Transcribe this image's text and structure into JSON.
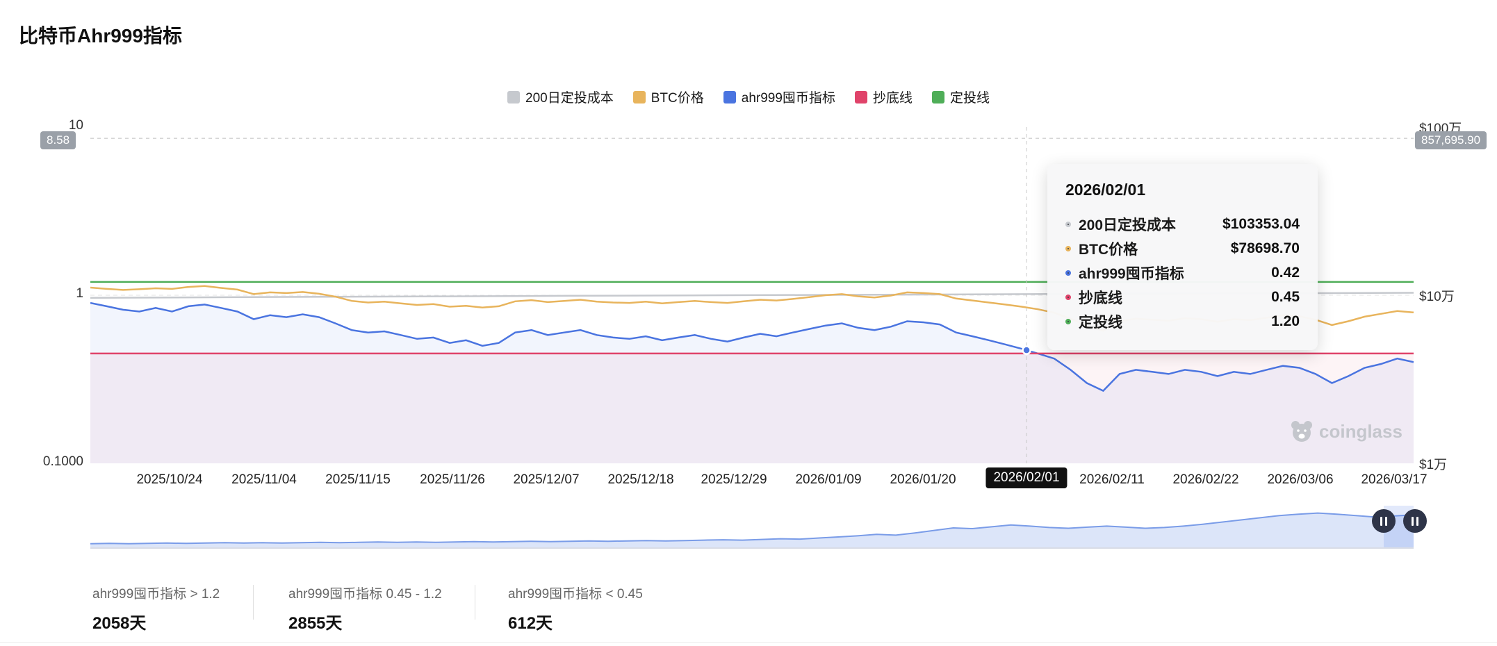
{
  "page": {
    "title": "比特币Ahr999指标"
  },
  "legend": [
    {
      "label": "200日定投成本",
      "color": "#c6c9ce"
    },
    {
      "label": "BTC价格",
      "color": "#e8b45c"
    },
    {
      "label": "ahr999囤币指标",
      "color": "#4a74e0"
    },
    {
      "label": "抄底线",
      "color": "#e0436a"
    },
    {
      "label": "定投线",
      "color": "#4fae58"
    }
  ],
  "axes": {
    "left_ticks": [
      "10",
      "1",
      "0.1000"
    ],
    "right_ticks": [
      "$100万",
      "$10万",
      "$1万"
    ],
    "left_badge": "8.58",
    "right_badge": "857,695.90",
    "x_ticks": [
      "2025/10/24",
      "2025/11/04",
      "2025/11/15",
      "2025/11/26",
      "2025/12/07",
      "2025/12/18",
      "2025/12/29",
      "2026/01/09",
      "2026/01/20",
      "2026/02/01",
      "2026/02/11",
      "2026/02/22",
      "2026/03/06",
      "2026/03/17"
    ]
  },
  "tooltip": {
    "title": "2026/02/01",
    "rows": [
      {
        "label": "200日定投成本",
        "value": "$103353.04",
        "color": "#c6c9ce"
      },
      {
        "label": "BTC价格",
        "value": "$78698.70",
        "color": "#e8b45c"
      },
      {
        "label": "ahr999囤币指标",
        "value": "0.42",
        "color": "#4a74e0"
      },
      {
        "label": "抄底线",
        "value": "0.45",
        "color": "#e0436a"
      },
      {
        "label": "定投线",
        "value": "1.20",
        "color": "#4fae58"
      }
    ]
  },
  "watermark": "coinglass",
  "stats": [
    {
      "label": "ahr999囤币指标 > 1.2",
      "value": "2058天"
    },
    {
      "label": "ahr999囤币指标 0.45 - 1.2",
      "value": "2855天"
    },
    {
      "label": "ahr999囤币指标 < 0.45",
      "value": "612天"
    }
  ],
  "chart_data": {
    "type": "line",
    "title": "比特币Ahr999指标",
    "y_left": {
      "scale": "log",
      "min": 0.1,
      "max": 10,
      "ticks": [
        10,
        1,
        0.1
      ]
    },
    "y_right": {
      "scale": "log",
      "min": 10000,
      "max": 1000000,
      "ticks": [
        1000000,
        100000,
        10000
      ]
    },
    "x_range": [
      "2025/10/15",
      "2026/03/19"
    ],
    "reference_lines": [
      {
        "name": "定投线",
        "value": 1.2,
        "color": "#4fae58"
      },
      {
        "name": "抄底线",
        "value": 0.45,
        "color": "#e0436a"
      }
    ],
    "crosshair": {
      "date": "2026/02/01",
      "x_frac": 0.7075,
      "left_value": 8.58,
      "right_value": 857695.9
    },
    "series": [
      {
        "name": "200日定投成本",
        "axis": "right",
        "color": "#c6c9ce",
        "values": [
          96500,
          97200,
          97900,
          98500,
          99200,
          99800,
          100400,
          101000,
          101600,
          102200,
          102800,
          103353
        ]
      },
      {
        "name": "BTC价格",
        "axis": "right",
        "color": "#e8b45c",
        "values": [
          111000,
          109000,
          107500,
          108500,
          110000,
          109000,
          112000,
          113500,
          110500,
          108000,
          101500,
          104000,
          103000,
          104500,
          102000,
          98000,
          92500,
          90500,
          91500,
          89500,
          87500,
          88500,
          85500,
          86500,
          84500,
          86000,
          92000,
          93500,
          91000,
          92500,
          94000,
          91500,
          90500,
          90000,
          91500,
          89500,
          91000,
          92500,
          91000,
          90000,
          92000,
          94000,
          93000,
          95000,
          97500,
          100000,
          101500,
          98500,
          97000,
          99500,
          104000,
          103000,
          101500,
          95500,
          93000,
          90500,
          88000,
          85500,
          82500,
          78700,
          72500,
          66000,
          61500,
          70000,
          72500,
          71500,
          70500,
          73000,
          72000,
          69500,
          72000,
          71000,
          73500,
          76000,
          75000,
          71500,
          66500,
          70000,
          74500,
          77500,
          80500,
          79000
        ]
      },
      {
        "name": "ahr999囤币指标",
        "axis": "left",
        "color": "#4a74e0",
        "values": [
          0.9,
          0.86,
          0.82,
          0.8,
          0.84,
          0.8,
          0.86,
          0.88,
          0.84,
          0.8,
          0.72,
          0.76,
          0.74,
          0.77,
          0.74,
          0.68,
          0.62,
          0.6,
          0.61,
          0.58,
          0.55,
          0.56,
          0.52,
          0.54,
          0.5,
          0.52,
          0.6,
          0.62,
          0.58,
          0.6,
          0.62,
          0.58,
          0.56,
          0.55,
          0.57,
          0.54,
          0.56,
          0.58,
          0.55,
          0.53,
          0.56,
          0.59,
          0.57,
          0.6,
          0.63,
          0.66,
          0.68,
          0.64,
          0.62,
          0.65,
          0.7,
          0.69,
          0.67,
          0.6,
          0.57,
          0.54,
          0.51,
          0.48,
          0.45,
          0.42,
          0.36,
          0.3,
          0.27,
          0.34,
          0.36,
          0.35,
          0.34,
          0.36,
          0.35,
          0.33,
          0.35,
          0.34,
          0.36,
          0.38,
          0.37,
          0.34,
          0.3,
          0.33,
          0.37,
          0.39,
          0.42,
          0.4
        ]
      }
    ],
    "navigator": [
      0.08,
      0.09,
      0.08,
      0.09,
      0.1,
      0.09,
      0.1,
      0.11,
      0.1,
      0.11,
      0.1,
      0.11,
      0.12,
      0.11,
      0.12,
      0.13,
      0.12,
      0.13,
      0.12,
      0.13,
      0.14,
      0.13,
      0.14,
      0.15,
      0.14,
      0.15,
      0.16,
      0.15,
      0.16,
      0.17,
      0.16,
      0.17,
      0.18,
      0.19,
      0.18,
      0.2,
      0.22,
      0.21,
      0.24,
      0.27,
      0.3,
      0.34,
      0.32,
      0.38,
      0.45,
      0.52,
      0.5,
      0.55,
      0.6,
      0.57,
      0.53,
      0.51,
      0.54,
      0.57,
      0.54,
      0.51,
      0.53,
      0.57,
      0.62,
      0.68,
      0.74,
      0.8,
      0.86,
      0.9,
      0.93,
      0.9,
      0.86,
      0.82,
      0.85,
      0.88
    ]
  }
}
